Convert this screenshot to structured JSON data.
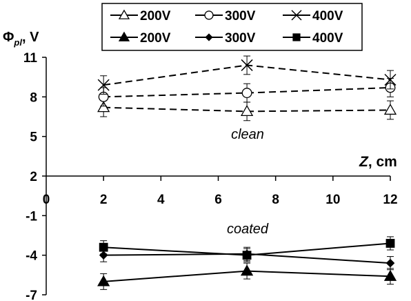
{
  "chart_data": {
    "type": "line",
    "ylabel": {
      "symbol": "Φ",
      "subscript": "pl",
      "unit": ", V"
    },
    "xlabel": {
      "symbol": "Z",
      "unit": ", cm"
    },
    "x_ticks": [
      0,
      2,
      4,
      6,
      8,
      10,
      12
    ],
    "y_ticks": [
      11,
      8,
      5,
      2,
      -1,
      -4,
      -7
    ],
    "xlim": [
      0,
      12
    ],
    "ylim": [
      -7,
      11
    ],
    "grid": false,
    "legend_position": "top-center",
    "annotations": [
      {
        "text": "clean",
        "x": 7,
        "y": 4.8
      },
      {
        "text": "coated",
        "x": 7,
        "y": -2.4
      }
    ],
    "series": [
      {
        "name": "200V",
        "group": "clean",
        "marker": "open-triangle",
        "line": "dashed",
        "x": [
          2,
          7,
          12
        ],
        "y": [
          7.2,
          6.9,
          7.0
        ],
        "err": [
          0.7,
          0.7,
          0.7
        ]
      },
      {
        "name": "300V",
        "group": "clean",
        "marker": "open-circle",
        "line": "dashed",
        "x": [
          2,
          7,
          12
        ],
        "y": [
          8.0,
          8.3,
          8.7
        ],
        "err": [
          0.7,
          0.7,
          0.7
        ]
      },
      {
        "name": "400V",
        "group": "clean",
        "marker": "cross",
        "line": "dashed",
        "x": [
          2,
          7,
          12
        ],
        "y": [
          8.9,
          10.4,
          9.3
        ],
        "err": [
          0.7,
          0.7,
          0.7
        ]
      },
      {
        "name": "200V",
        "group": "coated",
        "marker": "filled-triangle",
        "line": "solid",
        "x": [
          2,
          7,
          12
        ],
        "y": [
          -6.0,
          -5.2,
          -5.6
        ],
        "err": [
          0.6,
          0.6,
          0.6
        ]
      },
      {
        "name": "300V",
        "group": "coated",
        "marker": "filled-diamond",
        "line": "solid",
        "x": [
          2,
          7,
          12
        ],
        "y": [
          -4.0,
          -3.9,
          -4.6
        ],
        "err": [
          0.5,
          0.5,
          0.5
        ]
      },
      {
        "name": "400V",
        "group": "coated",
        "marker": "filled-square",
        "line": "solid",
        "x": [
          2,
          7,
          12
        ],
        "y": [
          -3.4,
          -4.0,
          -3.1
        ],
        "err": [
          0.5,
          0.5,
          0.5
        ]
      }
    ]
  }
}
